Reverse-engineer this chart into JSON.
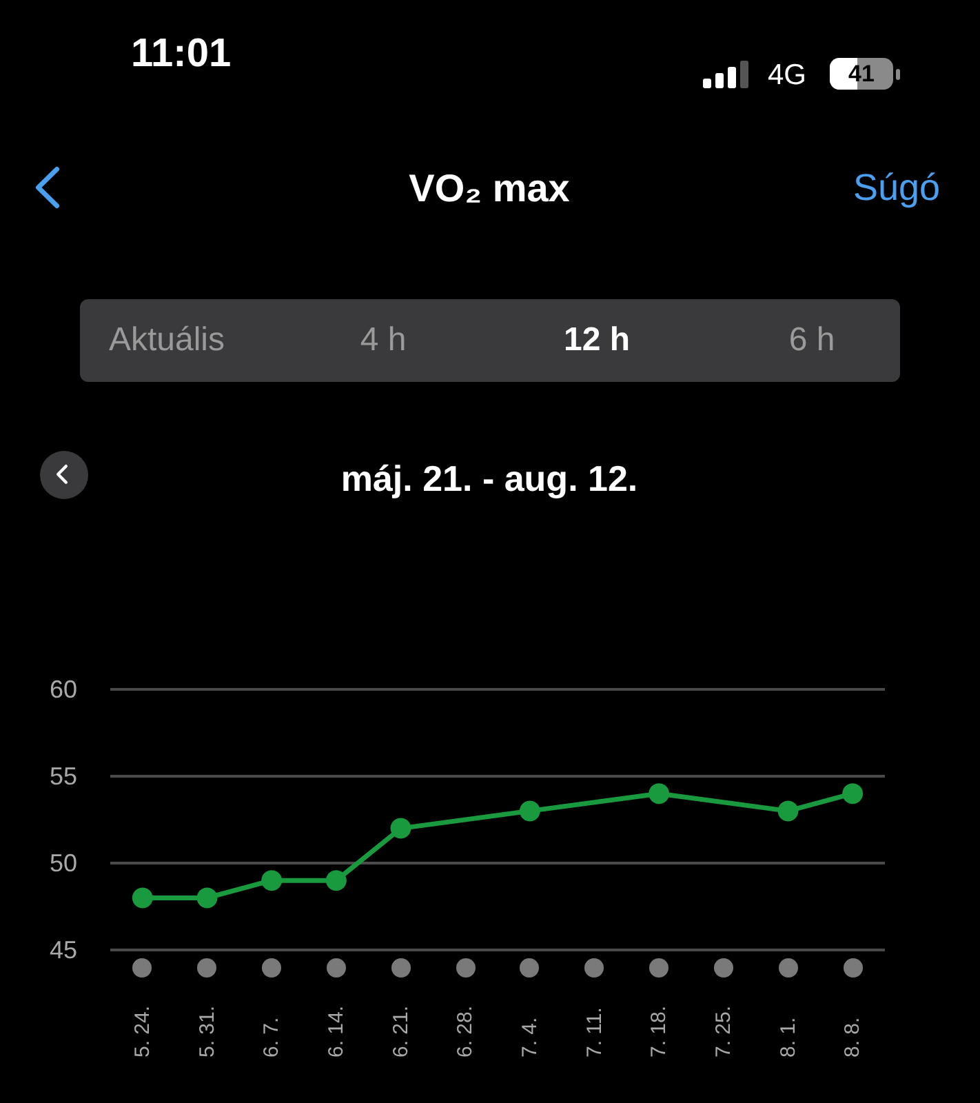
{
  "chart_data": {
    "type": "line",
    "title": "VO₂ max",
    "subtitle": "máj. 21. - aug. 12.",
    "categories": [
      "5. 24.",
      "5. 31.",
      "6. 7.",
      "6. 14.",
      "6. 21.",
      "6. 28.",
      "7. 4.",
      "7. 11.",
      "7. 18.",
      "7. 25.",
      "8. 1.",
      "8. 8."
    ],
    "series": [
      {
        "x": [
          "5. 24.",
          "5. 31.",
          "6. 7.",
          "6. 14.",
          "6. 21.",
          "7. 4.",
          "7. 18.",
          "8. 1.",
          "8. 8."
        ],
        "values": [
          48,
          48,
          49,
          49,
          52,
          53,
          54,
          53,
          54
        ],
        "color": "#1a9a3e"
      }
    ],
    "ylim": [
      45,
      60
    ],
    "yticks": [
      45,
      50,
      55,
      60
    ],
    "grid": "y",
    "marker": "circle",
    "line_style": "solid",
    "annotations": [
      "11:01",
      "4G",
      "41",
      "Súgó",
      "Aktuális",
      "4 h",
      "12 h",
      "6 h"
    ]
  }
}
